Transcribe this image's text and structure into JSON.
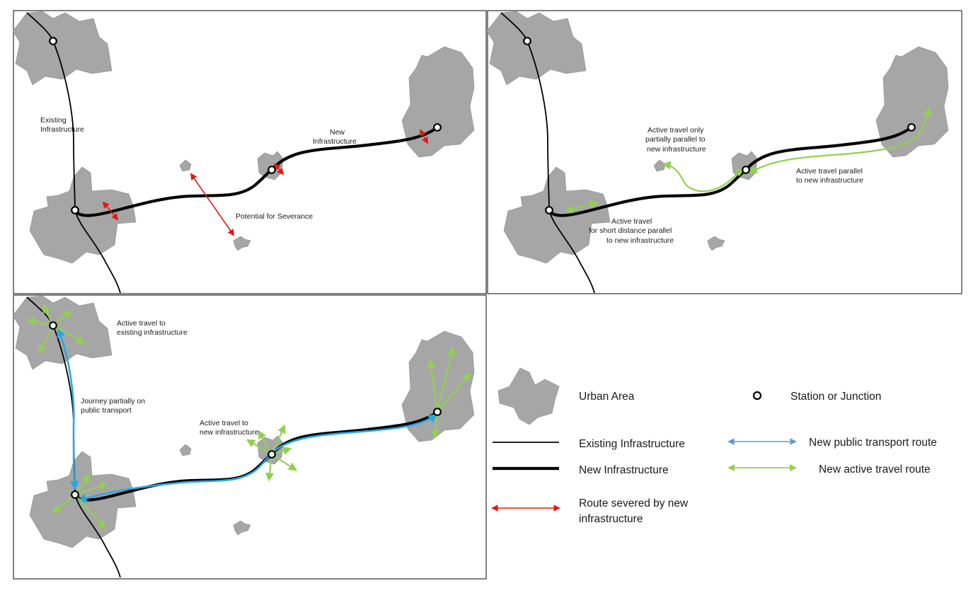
{
  "panel1": {
    "existing_label_line1": "Existing",
    "existing_label_line2": "Infrastructure",
    "new_label_line1": "New",
    "new_label_line2": "Infrastructure",
    "severance_label": "Potential for Severance"
  },
  "panel2": {
    "partial_line1": "Active travel only",
    "partial_line2": "partially parallel to",
    "partial_line3": "new infrastructure",
    "parallel_line1": "Active travel parallel",
    "parallel_line2": "to new infrastructure",
    "short_line1": "Active travel",
    "short_line2": "for short distance parallel",
    "short_line3": "to new infrastructure"
  },
  "panel3": {
    "existing_access_line1": "Active travel to",
    "existing_access_line2": "existing infrastructure",
    "journey_line1": "Journey partially on",
    "journey_line2": "public transport",
    "new_access_line1": "Active travel to",
    "new_access_line2": "new infrastructure"
  },
  "legend": {
    "urban_area": "Urban Area",
    "station": "Station or Junction",
    "existing_infrastructure": "Existing Infrastructure",
    "new_infrastructure": "New Infrastructure",
    "public_transport_route": "New public transport route",
    "active_travel_route": "New active travel route",
    "severed_line1": "Route severed by new",
    "severed_line2": "infrastructure"
  },
  "colors": {
    "urban_fill": "#a6a6a6",
    "public_transport": "#29a8e0",
    "active_travel": "#92d050",
    "severed": "#e8180f"
  }
}
